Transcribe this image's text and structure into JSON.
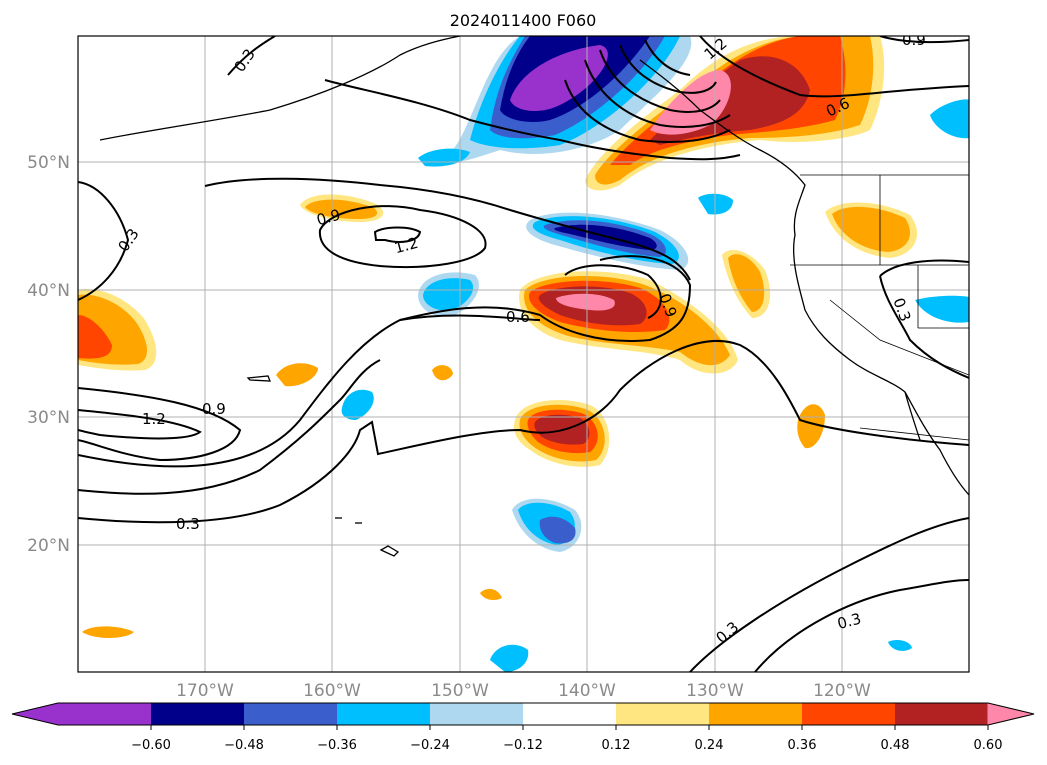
{
  "title": "2024011400 F060",
  "lat_labels": [
    "50°N",
    "40°N",
    "30°N",
    "20°N"
  ],
  "lon_labels": [
    "170°W",
    "160°W",
    "150°W",
    "140°W",
    "130°W",
    "120°W"
  ],
  "colorbar": {
    "ticks": [
      "−0.60",
      "−0.48",
      "−0.36",
      "−0.24",
      "−0.12",
      "0.12",
      "0.24",
      "0.36",
      "0.48",
      "0.60"
    ],
    "colors": [
      "#9932cc",
      "#00008b",
      "#3a5fcd",
      "#00bfff",
      "#add8f0",
      "#ffffff",
      "#ffe680",
      "#ffa500",
      "#ff4500",
      "#b22222",
      "#ff88aa"
    ]
  },
  "contour_labels": [
    "0.3",
    "0.3",
    "0.3",
    "0.3",
    "0.3",
    "0.3",
    "0.6",
    "0.6",
    "0.9",
    "0.9",
    "0.9",
    "0.9",
    "1.2",
    "1.2",
    "1.2"
  ]
}
